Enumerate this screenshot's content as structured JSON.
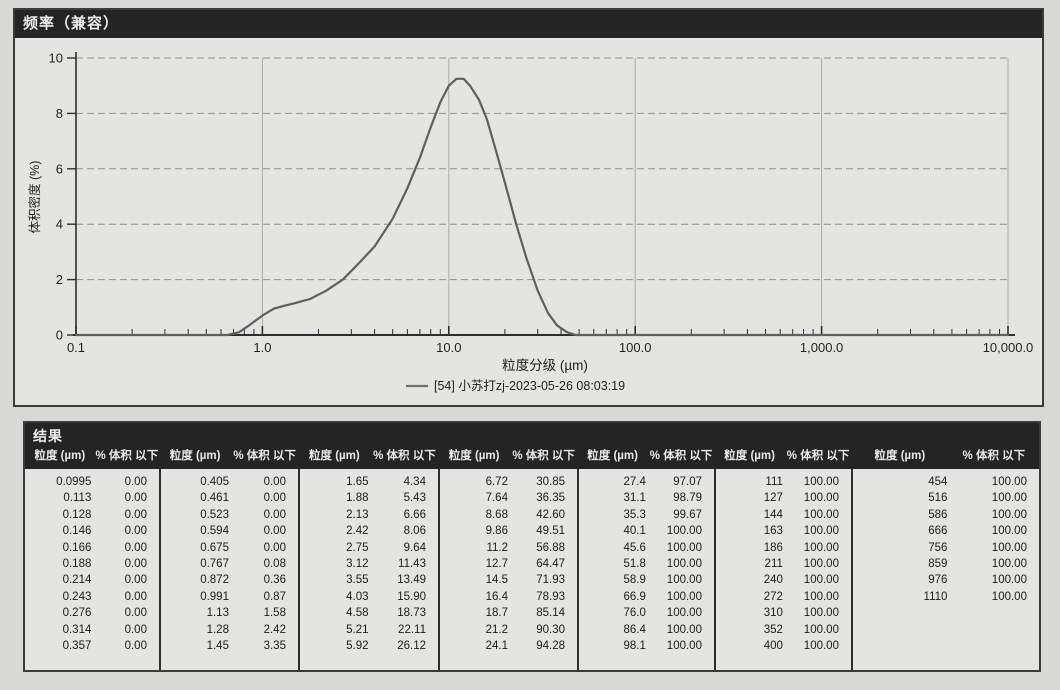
{
  "chart_panel": {
    "title": "频率（兼容）",
    "legend": {
      "label": "[54] 小苏打zj-2023-05-26 08:03:19",
      "line_color": "#6e6e6e"
    },
    "colors": {
      "curve": "#5f5f5f",
      "grid_h": "#8f8f8f",
      "grid_v": "#ababab",
      "axis": "#2e2e2e",
      "text": "#1f1f1f",
      "panel_bg": "#e4e4e2",
      "header_bg": "#242424",
      "header_text": "#ebebe9"
    }
  },
  "chart_data": {
    "type": "line",
    "title": "频率（兼容）",
    "xlabel": "粒度分级 (µm)",
    "ylabel": "体积密度 (%)",
    "x_scale": "log",
    "xlim": [
      0.1,
      10000
    ],
    "ylim": [
      0,
      10
    ],
    "y_ticks": [
      0,
      2,
      4,
      6,
      8,
      10
    ],
    "x_tick_labels": [
      {
        "label": "0.1",
        "value": 0.1
      },
      {
        "label": "1.0",
        "value": 1
      },
      {
        "label": "10.0",
        "value": 10
      },
      {
        "label": "100.0",
        "value": 100
      },
      {
        "label": "1,000.0",
        "value": 1000
      },
      {
        "label": "10,000.0",
        "value": 10000
      }
    ],
    "grid": true,
    "legend_position": "bottom-center",
    "series": [
      {
        "name": "[54] 小苏打zj-2023-05-26 08:03:19",
        "points": [
          [
            0.1,
            0
          ],
          [
            0.65,
            0
          ],
          [
            0.75,
            0.1
          ],
          [
            0.85,
            0.35
          ],
          [
            1.0,
            0.7
          ],
          [
            1.15,
            0.95
          ],
          [
            1.3,
            1.05
          ],
          [
            1.5,
            1.15
          ],
          [
            1.8,
            1.3
          ],
          [
            2.2,
            1.6
          ],
          [
            2.7,
            2.0
          ],
          [
            3.3,
            2.6
          ],
          [
            4.0,
            3.2
          ],
          [
            5.0,
            4.2
          ],
          [
            6.0,
            5.3
          ],
          [
            7.0,
            6.4
          ],
          [
            8.0,
            7.5
          ],
          [
            9.0,
            8.4
          ],
          [
            10.0,
            9.0
          ],
          [
            11.0,
            9.25
          ],
          [
            12.0,
            9.25
          ],
          [
            13.0,
            9.0
          ],
          [
            14.5,
            8.5
          ],
          [
            16.0,
            7.8
          ],
          [
            18.0,
            6.6
          ],
          [
            20.0,
            5.5
          ],
          [
            23.0,
            4.0
          ],
          [
            26.0,
            2.8
          ],
          [
            30.0,
            1.6
          ],
          [
            34.0,
            0.8
          ],
          [
            38.0,
            0.35
          ],
          [
            43.0,
            0.1
          ],
          [
            48.0,
            0
          ],
          [
            10000,
            0
          ]
        ]
      }
    ]
  },
  "results_table": {
    "title": "结果",
    "col_headers": {
      "size": "粒度 (µm)",
      "pct": "% 体积 以下"
    },
    "groups": [
      {
        "rows": [
          [
            "0.0995",
            "0.00"
          ],
          [
            "0.113",
            "0.00"
          ],
          [
            "0.128",
            "0.00"
          ],
          [
            "0.146",
            "0.00"
          ],
          [
            "0.166",
            "0.00"
          ],
          [
            "0.188",
            "0.00"
          ],
          [
            "0.214",
            "0.00"
          ],
          [
            "0.243",
            "0.00"
          ],
          [
            "0.276",
            "0.00"
          ],
          [
            "0.314",
            "0.00"
          ],
          [
            "0.357",
            "0.00"
          ]
        ]
      },
      {
        "rows": [
          [
            "0.405",
            "0.00"
          ],
          [
            "0.461",
            "0.00"
          ],
          [
            "0.523",
            "0.00"
          ],
          [
            "0.594",
            "0.00"
          ],
          [
            "0.675",
            "0.00"
          ],
          [
            "0.767",
            "0.08"
          ],
          [
            "0.872",
            "0.36"
          ],
          [
            "0.991",
            "0.87"
          ],
          [
            "1.13",
            "1.58"
          ],
          [
            "1.28",
            "2.42"
          ],
          [
            "1.45",
            "3.35"
          ]
        ]
      },
      {
        "rows": [
          [
            "1.65",
            "4.34"
          ],
          [
            "1.88",
            "5.43"
          ],
          [
            "2.13",
            "6.66"
          ],
          [
            "2.42",
            "8.06"
          ],
          [
            "2.75",
            "9.64"
          ],
          [
            "3.12",
            "11.43"
          ],
          [
            "3.55",
            "13.49"
          ],
          [
            "4.03",
            "15.90"
          ],
          [
            "4.58",
            "18.73"
          ],
          [
            "5.21",
            "22.11"
          ],
          [
            "5.92",
            "26.12"
          ]
        ]
      },
      {
        "rows": [
          [
            "6.72",
            "30.85"
          ],
          [
            "7.64",
            "36.35"
          ],
          [
            "8.68",
            "42.60"
          ],
          [
            "9.86",
            "49.51"
          ],
          [
            "11.2",
            "56.88"
          ],
          [
            "12.7",
            "64.47"
          ],
          [
            "14.5",
            "71.93"
          ],
          [
            "16.4",
            "78.93"
          ],
          [
            "18.7",
            "85.14"
          ],
          [
            "21.2",
            "90.30"
          ],
          [
            "24.1",
            "94.28"
          ]
        ]
      },
      {
        "rows": [
          [
            "27.4",
            "97.07"
          ],
          [
            "31.1",
            "98.79"
          ],
          [
            "35.3",
            "99.67"
          ],
          [
            "40.1",
            "100.00"
          ],
          [
            "45.6",
            "100.00"
          ],
          [
            "51.8",
            "100.00"
          ],
          [
            "58.9",
            "100.00"
          ],
          [
            "66.9",
            "100.00"
          ],
          [
            "76.0",
            "100.00"
          ],
          [
            "86.4",
            "100.00"
          ],
          [
            "98.1",
            "100.00"
          ]
        ]
      },
      {
        "rows": [
          [
            "111",
            "100.00"
          ],
          [
            "127",
            "100.00"
          ],
          [
            "144",
            "100.00"
          ],
          [
            "163",
            "100.00"
          ],
          [
            "186",
            "100.00"
          ],
          [
            "211",
            "100.00"
          ],
          [
            "240",
            "100.00"
          ],
          [
            "272",
            "100.00"
          ],
          [
            "310",
            "100.00"
          ],
          [
            "352",
            "100.00"
          ],
          [
            "400",
            "100.00"
          ]
        ]
      },
      {
        "rows": [
          [
            "454",
            "100.00"
          ],
          [
            "516",
            "100.00"
          ],
          [
            "586",
            "100.00"
          ],
          [
            "666",
            "100.00"
          ],
          [
            "756",
            "100.00"
          ],
          [
            "859",
            "100.00"
          ],
          [
            "976",
            "100.00"
          ],
          [
            "1110",
            "100.00"
          ]
        ]
      }
    ]
  }
}
